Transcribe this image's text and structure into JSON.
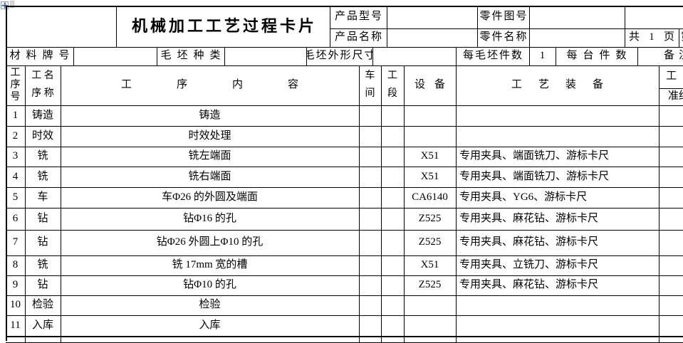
{
  "window": {
    "anchor_icon": "table-move-anchor-icon"
  },
  "header": {
    "title": "机械加工工艺过程卡片",
    "product_model_label": "产品型号",
    "product_model_value": "",
    "part_drawing_label": "零件图号",
    "part_drawing_value": "",
    "product_name_label": "产品名称",
    "product_name_value": "",
    "part_name_label": "零件名称",
    "part_name_value": "",
    "pages": {
      "total_prefix": "共",
      "total": "1",
      "total_suffix": "页",
      "current_prefix": "第"
    }
  },
  "blank_info": {
    "material_label": "材料牌号",
    "material_value": "",
    "blank_type_label": "毛坯种类",
    "blank_type_value": "",
    "blank_size_label": "毛坯外形尺寸",
    "blank_size_value": "",
    "per_blank_label": "每毛坯件数",
    "per_blank_value": "1",
    "per_unit_label": "每台件数",
    "per_unit_value": "",
    "remark_label": "备注"
  },
  "columns": {
    "no_lines": [
      "工",
      "序",
      "号"
    ],
    "name_lines": [
      "工 名",
      "序 称"
    ],
    "content": "工序内容",
    "workshop_lines": [
      "车",
      "间"
    ],
    "section_lines": [
      "工",
      "段"
    ],
    "equipment": "设备",
    "tooling": "工艺装备",
    "time": "工 时",
    "time_prep": "准终"
  },
  "rows": [
    {
      "no": "1",
      "name": "铸造",
      "content": "铸造",
      "workshop": "",
      "section": "",
      "equipment": "",
      "tooling": "",
      "time": ""
    },
    {
      "no": "2",
      "name": "时效",
      "content": "时效处理",
      "workshop": "",
      "section": "",
      "equipment": "",
      "tooling": "",
      "time": ""
    },
    {
      "no": "3",
      "name": "铣",
      "content": "铣左端面",
      "workshop": "",
      "section": "",
      "equipment": "X51",
      "tooling": "专用夹具、端面铣刀、游标卡尺",
      "time": ""
    },
    {
      "no": "4",
      "name": "铣",
      "content": "铣右端面",
      "workshop": "",
      "section": "",
      "equipment": "X51",
      "tooling": "专用夹具、端面铣刀、游标卡尺",
      "time": ""
    },
    {
      "no": "5",
      "name": "车",
      "content": "车Φ26 的外圆及端面",
      "workshop": "",
      "section": "",
      "equipment": "CA6140",
      "tooling": "专用夹具、YG6、游标卡尺",
      "time": ""
    },
    {
      "no": "6",
      "name": "钻",
      "content": "钻Φ16 的孔",
      "workshop": "",
      "section": "",
      "equipment": "Z525",
      "tooling": "专用夹具、麻花钻、游标卡尺",
      "time": ""
    },
    {
      "no": "7",
      "name": "钻",
      "content": "钻Φ26 外圆上Φ10 的孔",
      "workshop": "",
      "section": "",
      "equipment": "Z525",
      "tooling": "专用夹具、麻花钻、游标卡尺",
      "time": ""
    },
    {
      "no": "8",
      "name": "铣",
      "content": "铣 17mm 宽的槽",
      "workshop": "",
      "section": "",
      "equipment": "X51",
      "tooling": "专用夹具、立铣刀、游标卡尺",
      "time": ""
    },
    {
      "no": "9",
      "name": "钻",
      "content": "钻Φ10 的孔",
      "workshop": "",
      "section": "",
      "equipment": "Z525",
      "tooling": "专用夹具、麻花钻、游标卡尺",
      "time": ""
    },
    {
      "no": "10",
      "name": "检验",
      "content": "检验",
      "workshop": "",
      "section": "",
      "equipment": "",
      "tooling": "",
      "time": ""
    },
    {
      "no": "11",
      "name": "入库",
      "content": "入库",
      "workshop": "",
      "section": "",
      "equipment": "",
      "tooling": "",
      "time": ""
    }
  ]
}
